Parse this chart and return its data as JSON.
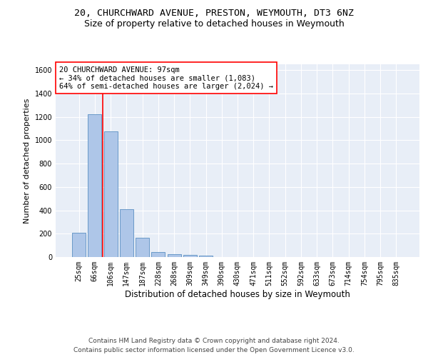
{
  "title1": "20, CHURCHWARD AVENUE, PRESTON, WEYMOUTH, DT3 6NZ",
  "title2": "Size of property relative to detached houses in Weymouth",
  "xlabel": "Distribution of detached houses by size in Weymouth",
  "ylabel": "Number of detached properties",
  "categories": [
    "25sqm",
    "66sqm",
    "106sqm",
    "147sqm",
    "187sqm",
    "228sqm",
    "268sqm",
    "309sqm",
    "349sqm",
    "390sqm",
    "430sqm",
    "471sqm",
    "511sqm",
    "552sqm",
    "592sqm",
    "633sqm",
    "673sqm",
    "714sqm",
    "754sqm",
    "795sqm",
    "835sqm"
  ],
  "values": [
    205,
    1225,
    1075,
    410,
    163,
    45,
    27,
    17,
    14,
    0,
    0,
    0,
    0,
    0,
    0,
    0,
    0,
    0,
    0,
    0,
    0
  ],
  "bar_color": "#aec6e8",
  "bar_edge_color": "#5a8fc2",
  "vline_x": 1.5,
  "vline_color": "red",
  "annotation_text": "20 CHURCHWARD AVENUE: 97sqm\n← 34% of detached houses are smaller (1,083)\n64% of semi-detached houses are larger (2,024) →",
  "annotation_box_color": "white",
  "annotation_box_edge_color": "red",
  "ylim": [
    0,
    1650
  ],
  "yticks": [
    0,
    200,
    400,
    600,
    800,
    1000,
    1200,
    1400,
    1600
  ],
  "footnote1": "Contains HM Land Registry data © Crown copyright and database right 2024.",
  "footnote2": "Contains public sector information licensed under the Open Government Licence v3.0.",
  "bg_color": "#e8eef7",
  "grid_color": "white",
  "title1_fontsize": 9.5,
  "title2_fontsize": 9,
  "xlabel_fontsize": 8.5,
  "ylabel_fontsize": 8,
  "tick_fontsize": 7,
  "annotation_fontsize": 7.5,
  "footnote_fontsize": 6.5
}
